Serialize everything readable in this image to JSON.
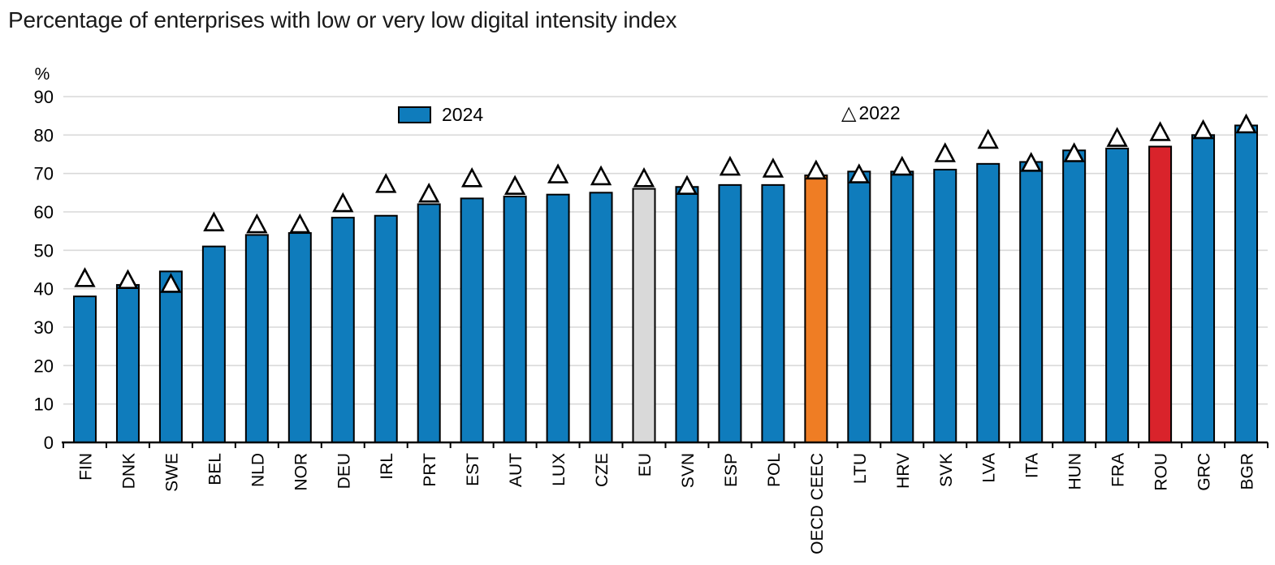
{
  "title": "Percentage of enterprises with low or very low digital intensity index",
  "y_axis_unit": "%",
  "legend": {
    "bar_label": "2024",
    "marker_label": "2022"
  },
  "colors": {
    "bar_default": "#0f7cbc",
    "bar_outline": "#000000",
    "marker_fill": "#ffffff",
    "marker_stroke": "#000000",
    "gridline": "#d9d9d9",
    "axis": "#000000",
    "text": "#000000",
    "highlight_eu": "#d9d9d9",
    "highlight_oecd_ceec": "#ef7d24",
    "highlight_rou": "#d9232b"
  },
  "chart_data": {
    "type": "bar",
    "title": "Percentage of enterprises with low or very low digital intensity index",
    "xlabel": "",
    "ylabel": "%",
    "ylim": [
      0,
      90
    ],
    "ytick_step": 10,
    "grid": true,
    "legend_position": "inside-top",
    "categories": [
      "FIN",
      "DNK",
      "SWE",
      "BEL",
      "NLD",
      "NOR",
      "DEU",
      "IRL",
      "PRT",
      "EST",
      "AUT",
      "LUX",
      "CZE",
      "EU",
      "SVN",
      "ESP",
      "POL",
      "OECD CEEC",
      "LTU",
      "HRV",
      "SVK",
      "LVA",
      "ITA",
      "HUN",
      "FRA",
      "ROU",
      "GRC",
      "BGR"
    ],
    "series": [
      {
        "name": "2024",
        "style": "bar",
        "values": [
          38,
          41,
          44.5,
          51,
          54,
          54.5,
          58.5,
          59,
          62,
          63.5,
          64,
          64.5,
          65,
          66,
          66.5,
          67,
          67,
          69.5,
          70.5,
          70.5,
          71,
          72.5,
          73,
          76,
          76.5,
          77,
          80,
          82.5
        ]
      },
      {
        "name": "2022",
        "style": "triangle-marker",
        "values": [
          42.5,
          42,
          41,
          57,
          56.5,
          56.5,
          62,
          67,
          64.5,
          68.5,
          66.5,
          69.5,
          69,
          68.5,
          66.5,
          71.5,
          71,
          70.5,
          69.5,
          71.5,
          75,
          78.5,
          72.5,
          75,
          79,
          80.5,
          81,
          82.5
        ]
      }
    ],
    "bar_color_overrides": {
      "EU": "#d9d9d9",
      "OECD CEEC": "#ef7d24",
      "ROU": "#d9232b"
    }
  }
}
